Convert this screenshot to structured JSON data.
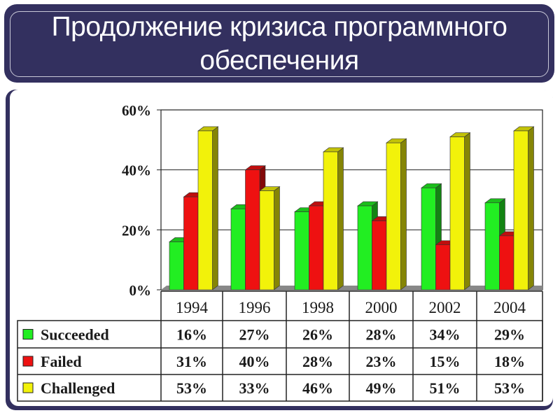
{
  "title": "Продолжение кризиса программного обеспечения",
  "chart_data": {
    "type": "bar",
    "title": "",
    "xlabel": "",
    "ylabel": "",
    "ylim": [
      0,
      60
    ],
    "yticks": [
      "0%",
      "20%",
      "40%",
      "60%"
    ],
    "ytick_values": [
      0,
      20,
      40,
      60
    ],
    "grid": true,
    "categories": [
      "1994",
      "1996",
      "1998",
      "2000",
      "2002",
      "2004"
    ],
    "series": [
      {
        "name": "Succeeded",
        "color": "#22ee22",
        "values": [
          16,
          27,
          26,
          28,
          34,
          29
        ],
        "labels": [
          "16%",
          "27%",
          "26%",
          "28%",
          "34%",
          "29%"
        ]
      },
      {
        "name": "Failed",
        "color": "#ee1111",
        "values": [
          31,
          40,
          28,
          23,
          15,
          18
        ],
        "labels": [
          "31%",
          "40%",
          "28%",
          "23%",
          "15%",
          "18%"
        ]
      },
      {
        "name": "Challenged",
        "color": "#f2f20a",
        "values": [
          53,
          33,
          46,
          49,
          51,
          53
        ],
        "labels": [
          "53%",
          "33%",
          "46%",
          "49%",
          "51%",
          "53%"
        ]
      }
    ],
    "legend": "data-table-bottom"
  }
}
